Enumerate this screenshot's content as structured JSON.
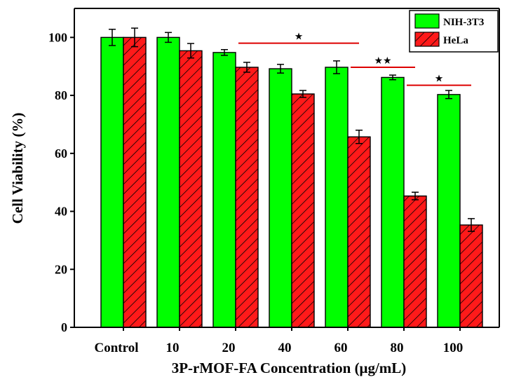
{
  "chart_data": {
    "type": "bar",
    "xlabel": "3P-rMOF-FA Concentration (μg/mL)",
    "ylabel": "Cell Viability (%)",
    "ylim": [
      0,
      110
    ],
    "yticks": [
      0,
      20,
      40,
      60,
      80,
      100
    ],
    "categories": [
      "Control",
      "10",
      "20",
      "40",
      "60",
      "80",
      "100"
    ],
    "series": [
      {
        "name": "NIH-3T3",
        "color": "#00ff00",
        "pattern": "solid",
        "values": [
          100,
          100,
          94.8,
          89.2,
          89.7,
          86.2,
          80.3
        ],
        "errors": [
          2.8,
          1.7,
          1.0,
          1.5,
          2.2,
          0.8,
          1.4
        ]
      },
      {
        "name": "HeLa",
        "color": "#ff1a1a",
        "pattern": "hatched",
        "values": [
          100,
          95.4,
          89.7,
          80.5,
          65.7,
          45.3,
          35.3
        ],
        "errors": [
          3.2,
          2.5,
          1.7,
          1.2,
          2.3,
          1.3,
          2.2
        ]
      }
    ],
    "annotations": [
      {
        "text": "★",
        "from_category": "20",
        "to_category": "60",
        "y": 98,
        "color": "#dd0000"
      },
      {
        "text": "★★",
        "from_category": "60",
        "to_category": "80",
        "y": 89.7,
        "color": "#dd0000"
      },
      {
        "text": "★",
        "from_category": "80",
        "to_category": "100",
        "y": 83.5,
        "color": "#dd0000"
      }
    ],
    "legend": {
      "position": "top-right"
    },
    "grid": false
  }
}
